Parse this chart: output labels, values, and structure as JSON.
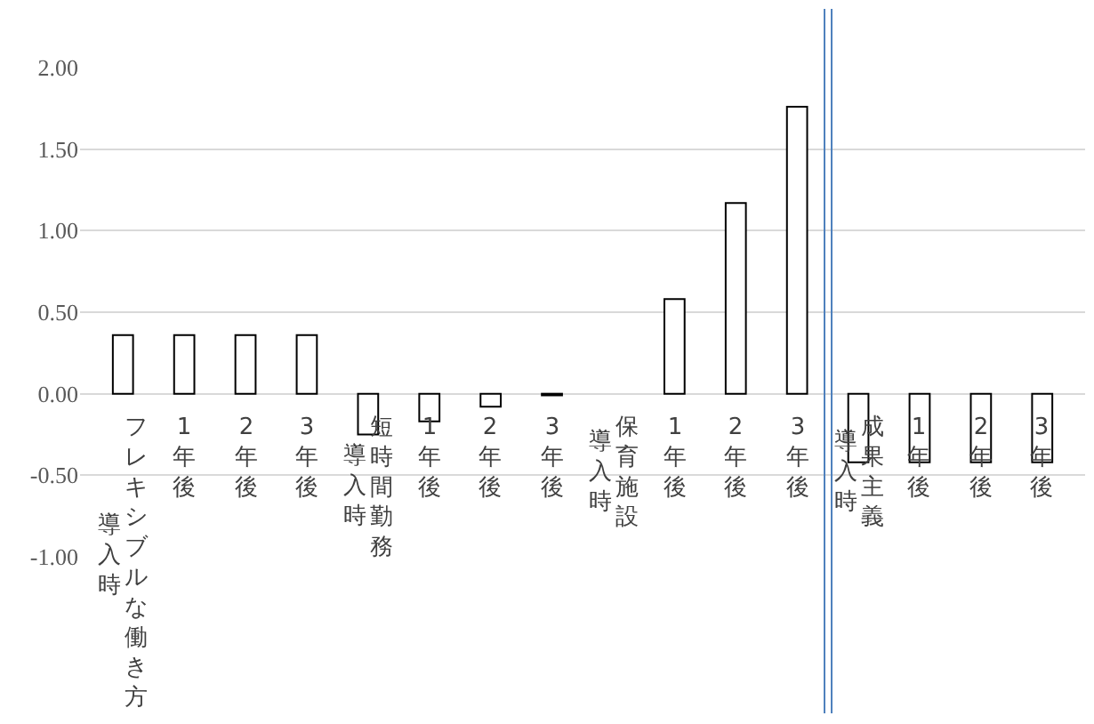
{
  "chart_data": {
    "type": "bar",
    "categories": [
      "導入時",
      "1年後",
      "2年後",
      "3年後",
      "導入時",
      "1年後",
      "2年後",
      "3年後",
      "導入時",
      "1年後",
      "2年後",
      "3年後",
      "導入時",
      "1年後",
      "2年後",
      "3年後"
    ],
    "annotations": [
      "フレキシブルな働き方",
      "短時間勤務",
      "保育施設",
      "成果主義"
    ],
    "values": [
      0.36,
      0.36,
      0.36,
      0.36,
      -0.25,
      -0.17,
      -0.08,
      -0.01,
      null,
      0.58,
      1.17,
      1.76,
      -0.42,
      -0.42,
      -0.42,
      -0.42
    ],
    "color": "#ffffff",
    "ylim": [
      -1,
      2
    ],
    "yticks": [
      {
        "value": -1,
        "label": "-1.00"
      },
      {
        "value": -0.5,
        "label": "-0.50"
      },
      {
        "value": 0,
        "label": "0.00"
      },
      {
        "value": 0.5,
        "label": "0.50"
      },
      {
        "value": 1,
        "label": "1.00"
      },
      {
        "value": 1.5,
        "label": "1.50"
      },
      {
        "value": 2,
        "label": "2.00"
      }
    ],
    "grid": "y",
    "legend": false
  }
}
